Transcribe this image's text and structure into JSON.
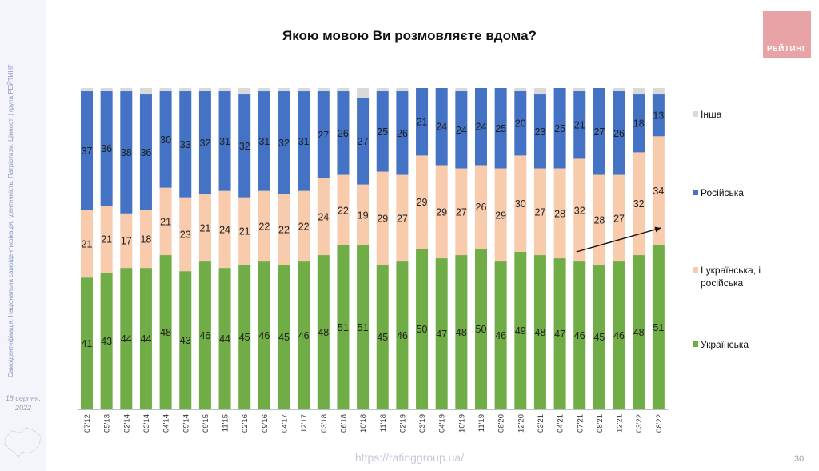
{
  "slide": {
    "side_text": "Самоідентифікація: Національна самоідентифікація. Ідентичність. Патріотизм. Цінності | група РЕЙТИНГ",
    "date": "18 серпня, 2022",
    "logo_text": "РЕЙТИНГ",
    "url": "https://ratinggroup.ua/",
    "page_number": "30",
    "map_icon": "ukraine-map-icon"
  },
  "chart_data": {
    "type": "bar",
    "stacked": true,
    "title": "Якою мовою Ви розмовляєте вдома?",
    "categories": [
      "07'12",
      "05'13",
      "02'14",
      "03'14",
      "04'14",
      "09'14",
      "09'15",
      "11'15",
      "02'16",
      "09'16",
      "04'17",
      "12'17",
      "03'18",
      "06'18",
      "10'18",
      "11'18",
      "02'19",
      "03'19",
      "04'19",
      "10'19",
      "11'19",
      "08'20",
      "12'20",
      "03'21",
      "04'21",
      "07'21",
      "08'21",
      "12'21",
      "03'22",
      "08'22"
    ],
    "ylim": [
      0,
      100
    ],
    "series": [
      {
        "name": "Українська",
        "color": "#70ad47",
        "values": [
          41,
          43,
          44,
          44,
          48,
          43,
          46,
          44,
          45,
          46,
          45,
          46,
          48,
          51,
          51,
          45,
          46,
          50,
          47,
          48,
          50,
          46,
          49,
          48,
          47,
          46,
          45,
          46,
          48,
          51
        ]
      },
      {
        "name": "І українська, і російська",
        "color": "#f8cbad",
        "values": [
          21,
          21,
          17,
          18,
          21,
          23,
          21,
          24,
          21,
          22,
          22,
          22,
          24,
          22,
          19,
          29,
          27,
          29,
          29,
          27,
          26,
          29,
          30,
          27,
          28,
          32,
          28,
          27,
          32,
          34
        ]
      },
      {
        "name": "Російська",
        "color": "#4472c4",
        "values": [
          37,
          36,
          38,
          36,
          30,
          33,
          32,
          31,
          32,
          31,
          32,
          31,
          27,
          26,
          27,
          25,
          26,
          21,
          24,
          24,
          24,
          25,
          20,
          23,
          25,
          21,
          27,
          26,
          18,
          13
        ]
      },
      {
        "name": "Інша",
        "color": "#d9d9d9",
        "values": [
          1,
          1,
          1,
          2,
          1,
          1,
          1,
          1,
          2,
          1,
          1,
          1,
          1,
          1,
          3,
          1,
          1,
          0,
          0,
          1,
          0,
          0,
          1,
          2,
          0,
          1,
          0,
          1,
          2,
          2
        ]
      }
    ],
    "annotation": "trend-arrow",
    "grid": false,
    "legend_position": "right"
  }
}
